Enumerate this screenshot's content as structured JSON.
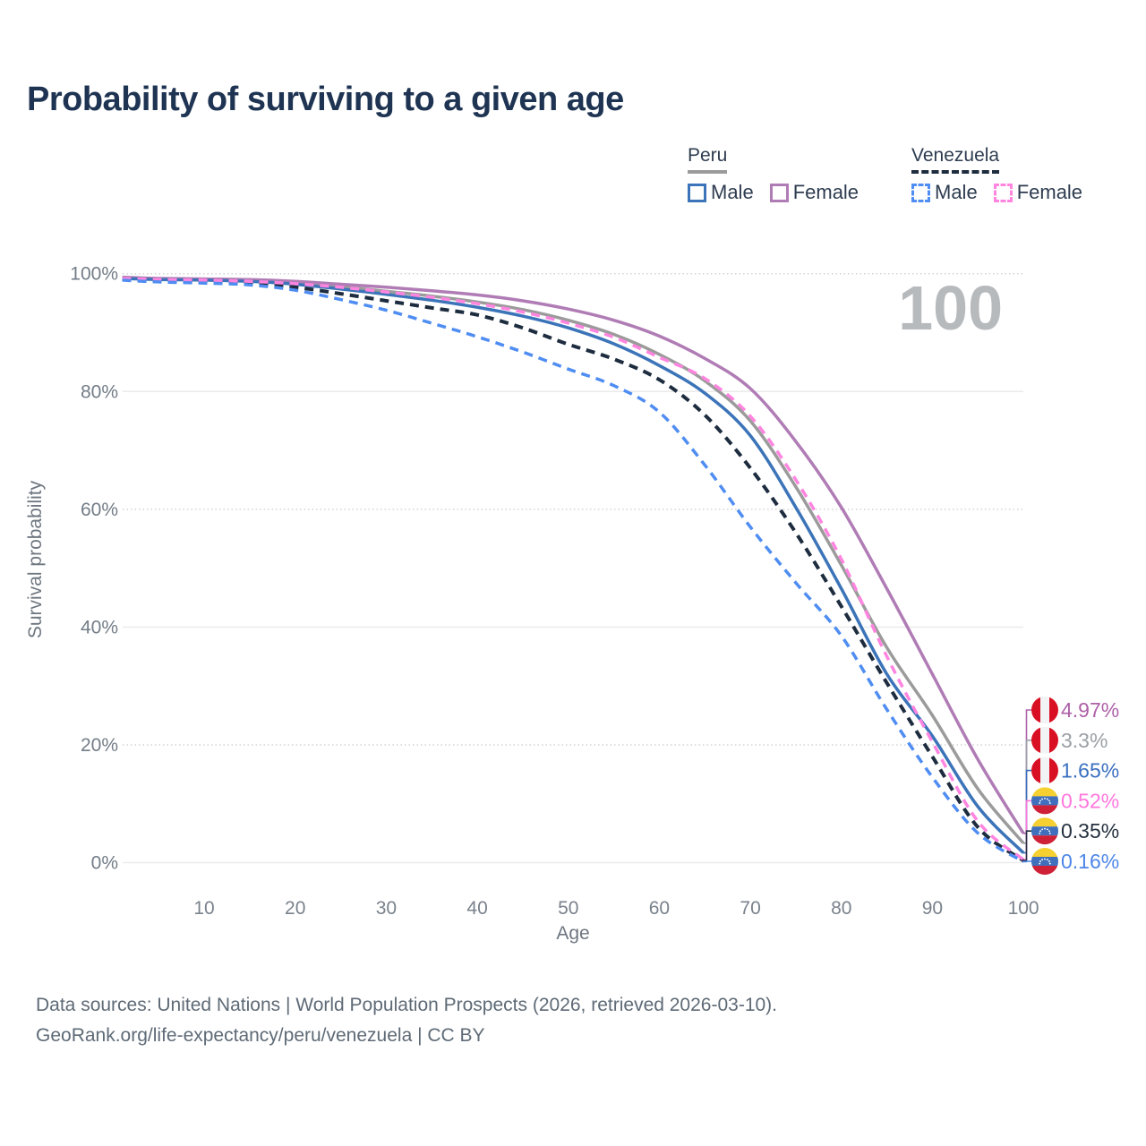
{
  "title": "Probability of surviving to a given age",
  "watermark": "100",
  "legend": {
    "groups": [
      {
        "label": "Peru",
        "line_style": "solid",
        "swatch_color": "#9b9b9b",
        "items": [
          {
            "label": "Male",
            "color": "#3c74b9",
            "dashed": false
          },
          {
            "label": "Female",
            "color": "#b07cb5",
            "dashed": false
          }
        ]
      },
      {
        "label": "Venezuela",
        "line_style": "dashed",
        "swatch_color": "#1d2c3e",
        "items": [
          {
            "label": "Male",
            "color": "#4f8df2",
            "dashed": true
          },
          {
            "label": "Female",
            "color": "#ff85e0",
            "dashed": true
          }
        ]
      }
    ]
  },
  "chart_data": {
    "type": "line",
    "title": "Probability of surviving to a given age",
    "xlabel": "Age",
    "ylabel": "Survival probability",
    "xlim": [
      1,
      100
    ],
    "ylim": [
      0,
      100
    ],
    "xticks": [
      10,
      20,
      30,
      40,
      50,
      60,
      70,
      80,
      90,
      100
    ],
    "yticks": [
      0,
      20,
      40,
      60,
      80,
      100
    ],
    "ytick_suffix": "%",
    "grid": true,
    "legend_position": "top-right",
    "highlighted_age": "100",
    "x": [
      1,
      5,
      10,
      15,
      20,
      25,
      30,
      35,
      40,
      45,
      50,
      55,
      60,
      65,
      70,
      75,
      80,
      85,
      90,
      95,
      100
    ],
    "series": [
      {
        "name": "Peru",
        "country": "Peru",
        "sex": "both",
        "flag": "peru",
        "color": "#9b9b9b",
        "dashed": false,
        "end_label": "3.3%",
        "label_color": "#9aa0a6",
        "values": [
          99.3,
          99.1,
          99.0,
          98.8,
          98.4,
          97.8,
          97.0,
          96.2,
          95.2,
          93.9,
          92.1,
          89.7,
          86.3,
          81.8,
          75.0,
          63.8,
          50.5,
          36.5,
          25.0,
          12.5,
          3.3
        ]
      },
      {
        "name": "Peru Female",
        "country": "Peru",
        "sex": "female",
        "flag": "peru",
        "color": "#b07cb5",
        "dashed": false,
        "end_label": "4.97%",
        "label_color": "#ad62a8",
        "values": [
          99.4,
          99.2,
          99.1,
          99.0,
          98.7,
          98.2,
          97.7,
          97.1,
          96.4,
          95.4,
          94.0,
          92.1,
          89.4,
          85.6,
          80.5,
          71.5,
          60.3,
          46.5,
          32.0,
          17.5,
          4.97
        ]
      },
      {
        "name": "Peru Male",
        "country": "Peru",
        "sex": "male",
        "flag": "peru",
        "color": "#3c74b9",
        "dashed": false,
        "end_label": "1.65%",
        "label_color": "#3a6fbf",
        "values": [
          99.2,
          99.0,
          98.9,
          98.7,
          98.2,
          97.4,
          96.5,
          95.5,
          94.3,
          92.8,
          90.8,
          88.1,
          84.4,
          79.7,
          72.5,
          60.3,
          46.5,
          32.0,
          21.5,
          9.5,
          1.65
        ]
      },
      {
        "name": "Venezuela",
        "country": "Venezuela",
        "sex": "both",
        "flag": "venezuela",
        "color": "#1d2c3e",
        "dashed": true,
        "end_label": "0.35%",
        "label_color": "#25313f",
        "values": [
          99.0,
          98.8,
          98.6,
          98.3,
          97.7,
          96.6,
          95.4,
          94.2,
          93.0,
          90.8,
          88.0,
          85.5,
          82.0,
          76.0,
          67.0,
          56.0,
          43.5,
          30.5,
          18.0,
          6.0,
          0.35
        ]
      },
      {
        "name": "Venezuela Female",
        "country": "Venezuela",
        "sex": "female",
        "flag": "venezuela",
        "color": "#ff85e0",
        "dashed": true,
        "end_label": "0.52%",
        "label_color": "#ff77dd",
        "values": [
          99.2,
          99.0,
          98.9,
          98.7,
          98.3,
          97.7,
          96.9,
          96.0,
          94.9,
          93.5,
          91.6,
          89.2,
          85.8,
          82.2,
          75.8,
          65.0,
          51.5,
          35.0,
          20.5,
          7.0,
          0.52
        ]
      },
      {
        "name": "Venezuela Male",
        "country": "Venezuela",
        "sex": "male",
        "flag": "venezuela",
        "color": "#4f8df2",
        "dashed": true,
        "end_label": "0.16%",
        "label_color": "#4d86e8",
        "values": [
          98.9,
          98.6,
          98.4,
          98.1,
          97.2,
          95.6,
          93.8,
          91.6,
          89.3,
          86.7,
          83.8,
          81.0,
          76.5,
          67.5,
          57.0,
          47.5,
          38.5,
          26.0,
          14.5,
          5.0,
          0.16
        ]
      }
    ]
  },
  "footer": {
    "line1": "Data sources: United Nations | World Population Prospects (2026, retrieved 2026-03-10).",
    "line2": "GeoRank.org/life-expectancy/peru/venezuela | CC BY"
  }
}
